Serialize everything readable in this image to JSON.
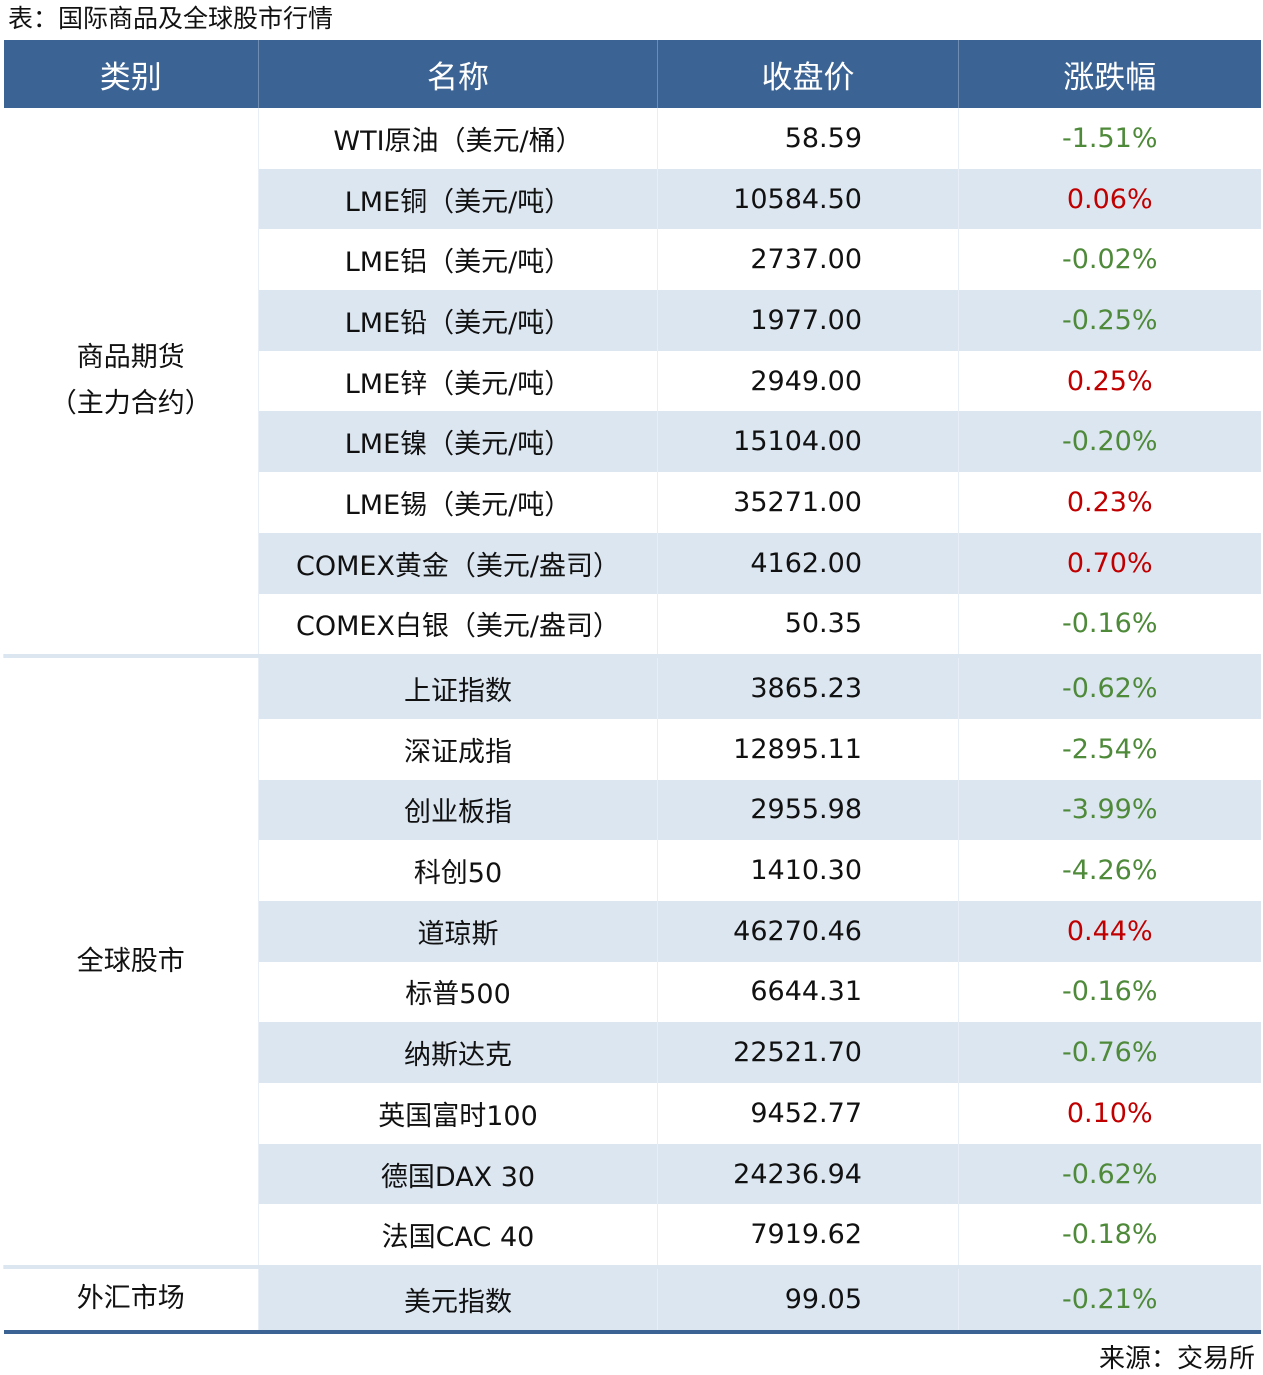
{
  "title": "表：国际商品及全球股市行情",
  "headers": [
    "类别",
    "名称",
    "收盘价",
    "涨跌幅"
  ],
  "colors": {
    "header_bg": "#3b6394",
    "stripe": "#dce6f1",
    "up": "#c00000",
    "down": "#4e8a3a"
  },
  "sections": [
    {
      "category": "商品期货（主力合约）",
      "rows": [
        {
          "name": "WTI原油（美元/桶）",
          "price": "58.59",
          "change": "-1.51%"
        },
        {
          "name": "LME铜（美元/吨）",
          "price": "10584.50",
          "change": "0.06%"
        },
        {
          "name": "LME铝（美元/吨）",
          "price": "2737.00",
          "change": "-0.02%"
        },
        {
          "name": "LME铅（美元/吨）",
          "price": "1977.00",
          "change": "-0.25%"
        },
        {
          "name": "LME锌（美元/吨）",
          "price": "2949.00",
          "change": "0.25%"
        },
        {
          "name": "LME镍（美元/吨）",
          "price": "15104.00",
          "change": "-0.20%"
        },
        {
          "name": "LME锡（美元/吨）",
          "price": "35271.00",
          "change": "0.23%"
        },
        {
          "name": "COMEX黄金（美元/盎司）",
          "price": "4162.00",
          "change": "0.70%"
        },
        {
          "name": "COMEX白银（美元/盎司）",
          "price": "50.35",
          "change": "-0.16%"
        }
      ]
    },
    {
      "category": "全球股市",
      "rows": [
        {
          "name": "上证指数",
          "price": "3865.23",
          "change": "-0.62%"
        },
        {
          "name": "深证成指",
          "price": "12895.11",
          "change": "-2.54%"
        },
        {
          "name": "创业板指",
          "price": "2955.98",
          "change": "-3.99%"
        },
        {
          "name": "科创50",
          "price": "1410.30",
          "change": "-4.26%"
        },
        {
          "name": "道琼斯",
          "price": "46270.46",
          "change": "0.44%"
        },
        {
          "name": "标普500",
          "price": "6644.31",
          "change": "-0.16%"
        },
        {
          "name": "纳斯达克",
          "price": "22521.70",
          "change": "-0.76%"
        },
        {
          "name": "英国富时100",
          "price": "9452.77",
          "change": "0.10%"
        },
        {
          "name": "德国DAX 30",
          "price": "24236.94",
          "change": "-0.62%"
        },
        {
          "name": "法国CAC 40",
          "price": "7919.62",
          "change": "-0.18%"
        }
      ]
    },
    {
      "category": "外汇市场",
      "rows": [
        {
          "name": "美元指数",
          "price": "99.05",
          "change": "-0.21%"
        }
      ]
    }
  ],
  "source": "来源：交易所"
}
